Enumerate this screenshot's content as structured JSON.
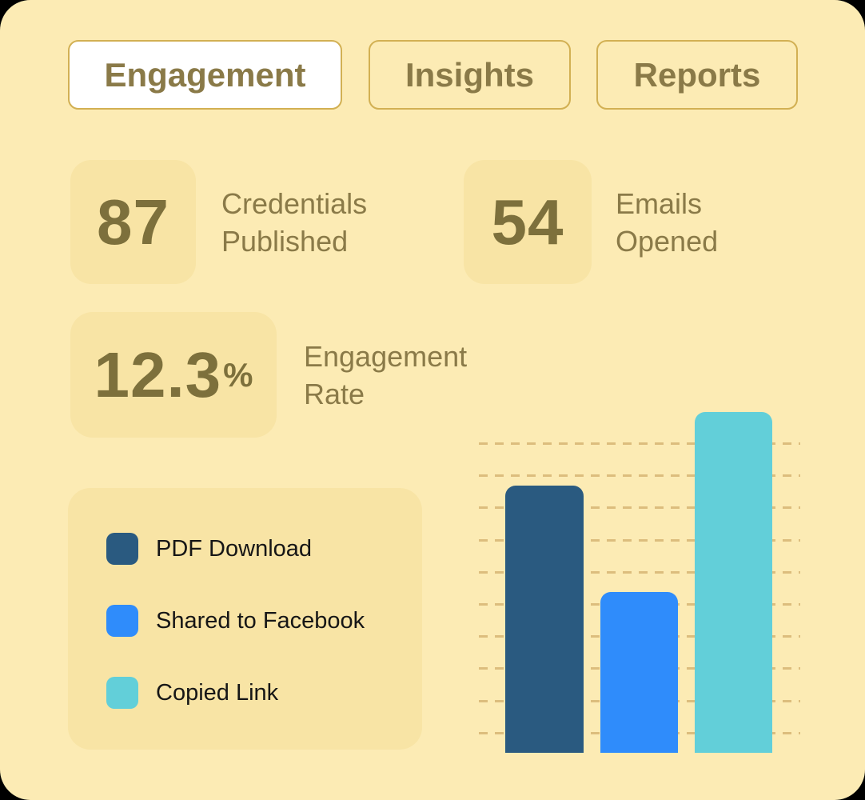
{
  "tabs": [
    {
      "label": "Engagement",
      "active": true
    },
    {
      "label": "Insights",
      "active": false
    },
    {
      "label": "Reports",
      "active": false
    }
  ],
  "stats": [
    {
      "value": "87",
      "label": "Credentials Published"
    },
    {
      "value": "54",
      "label": "Emails Opened"
    },
    {
      "value": "12.3",
      "unit": "%",
      "label": "Engagement Rate"
    }
  ],
  "legend": {
    "items": [
      {
        "label": "PDF Download",
        "color": "#2A5A80"
      },
      {
        "label": "Shared to Facebook",
        "color": "#2F8CFB"
      },
      {
        "label": "Copied Link",
        "color": "#62CFD9"
      }
    ]
  },
  "chart_data": {
    "type": "bar",
    "title": "",
    "xlabel": "",
    "ylabel": "",
    "categories": [
      "PDF Download",
      "Shared to Facebook",
      "Copied Link"
    ],
    "values": [
      8.3,
      5.0,
      10.6
    ],
    "value_unit": "gridline-spacings (axis unlabeled, estimated from dashed gridlines)",
    "series_colors": [
      "#2A5A80",
      "#2F8CFB",
      "#62CFD9"
    ],
    "gridlines": {
      "count": 10,
      "style": "dashed",
      "color": "#DCBD7D"
    },
    "legend_position": "left-card",
    "bars_have_rounded_tops": true
  },
  "colors": {
    "page_background": "#FCEBB4",
    "muted_card_background": "#F8E4A5",
    "active_tab_background": "#FFFFFF",
    "tab_border": "#D2B053",
    "olive_text": "#8A7A48",
    "stat_number_text": "#7D703C",
    "legend_text": "#161616"
  }
}
